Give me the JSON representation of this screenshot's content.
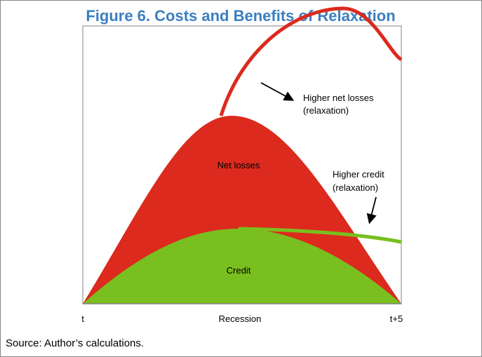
{
  "title": "Figure 6. Costs and Benefits of Relaxation",
  "labels": {
    "net_losses": "Net losses",
    "credit": "Credit",
    "higher_net_losses": [
      "Higher net losses",
      "(relaxation)"
    ],
    "higher_credit": [
      "Higher credit",
      "(relaxation)"
    ]
  },
  "x_axis": {
    "start": "t",
    "middle": "Recession",
    "end": "t+5"
  },
  "source": "Source: Author’s calculations."
}
